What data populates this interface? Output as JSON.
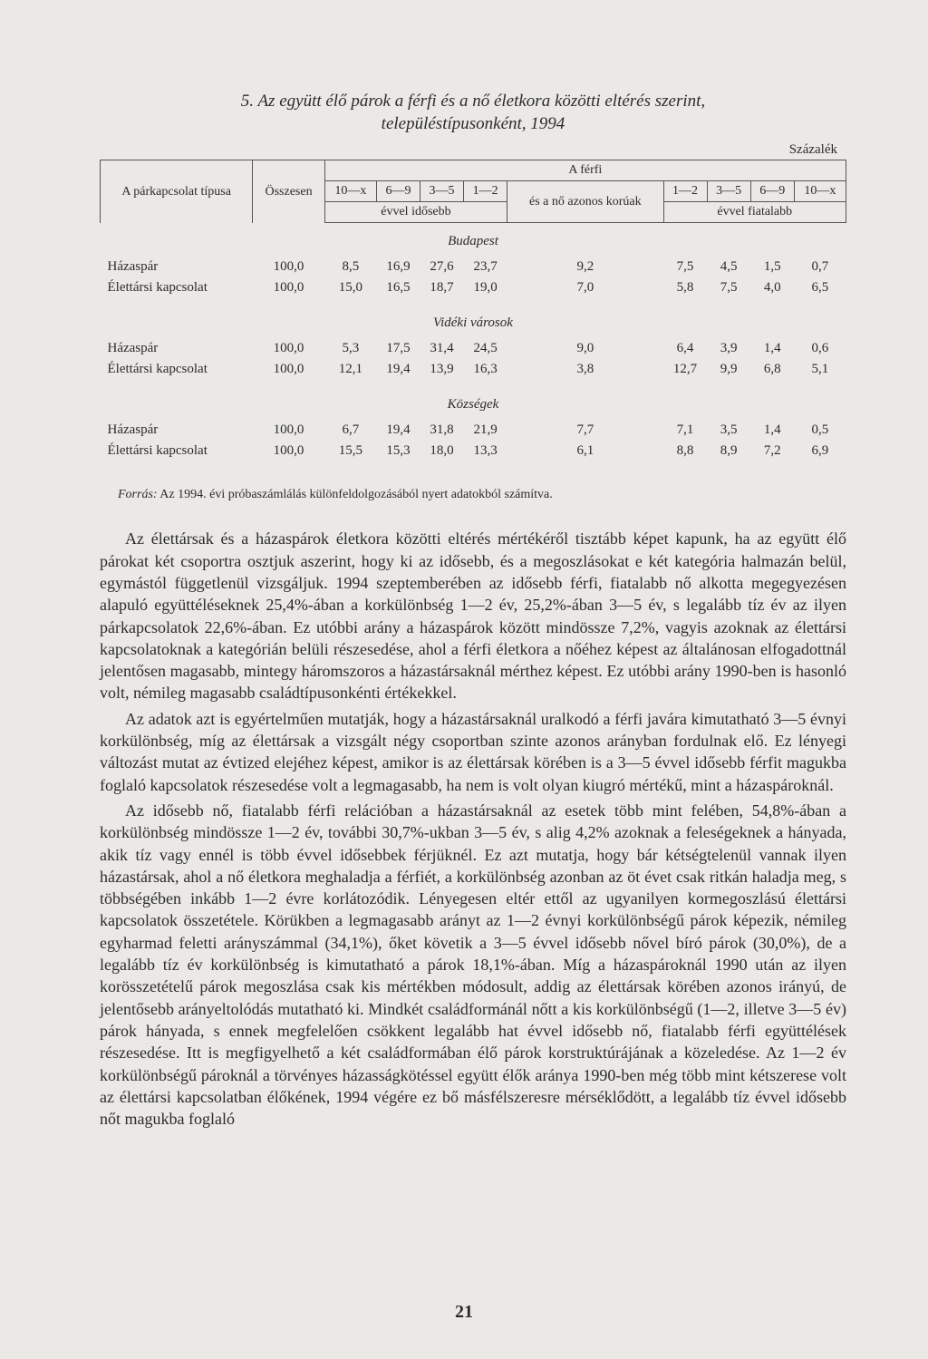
{
  "title_line1": "5. Az együtt élő párok a férfi és a nő életkora közötti eltérés szerint,",
  "title_line2": "településtípusonként, 1994",
  "unit": "Százalék",
  "header": {
    "col_type": "A párkapcsolat típusa",
    "col_total": "Összesen",
    "col_group": "A férfi",
    "col_10x_a": "10—x",
    "col_6_9_a": "6—9",
    "col_3_5_a": "3—5",
    "col_1_2_a": "1—2",
    "col_same": "és a nő azonos korúak",
    "col_1_2_b": "1—2",
    "col_3_5_b": "3—5",
    "col_6_9_b": "6—9",
    "col_10x_b": "10—x",
    "col_older": "évvel idősebb",
    "col_younger": "évvel fiatalabb"
  },
  "sections": {
    "budapest": "Budapest",
    "videki": "Vidéki városok",
    "kozsegek": "Községek"
  },
  "rows": {
    "hazaspar": "Házaspár",
    "elettarsi": "Élettársi kapcsolat"
  },
  "data": {
    "budapest": {
      "hazaspar": [
        "100,0",
        "8,5",
        "16,9",
        "27,6",
        "23,7",
        "9,2",
        "7,5",
        "4,5",
        "1,5",
        "0,7"
      ],
      "elettarsi": [
        "100,0",
        "15,0",
        "16,5",
        "18,7",
        "19,0",
        "7,0",
        "5,8",
        "7,5",
        "4,0",
        "6,5"
      ]
    },
    "videki": {
      "hazaspar": [
        "100,0",
        "5,3",
        "17,5",
        "31,4",
        "24,5",
        "9,0",
        "6,4",
        "3,9",
        "1,4",
        "0,6"
      ],
      "elettarsi": [
        "100,0",
        "12,1",
        "19,4",
        "13,9",
        "16,3",
        "3,8",
        "12,7",
        "9,9",
        "6,8",
        "5,1"
      ]
    },
    "kozsegek": {
      "hazaspar": [
        "100,0",
        "6,7",
        "19,4",
        "31,8",
        "21,9",
        "7,7",
        "7,1",
        "3,5",
        "1,4",
        "0,5"
      ],
      "elettarsi": [
        "100,0",
        "15,5",
        "15,3",
        "18,0",
        "13,3",
        "6,1",
        "8,8",
        "8,9",
        "7,2",
        "6,9"
      ]
    }
  },
  "source_label": "Forrás:",
  "source_text": " Az 1994. évi próbaszámlálás különfeldolgozásából nyert adatokból számítva.",
  "paragraphs": [
    "Az élettársak és a házaspárok életkora közötti eltérés mértékéről tisztább képet kapunk, ha az együtt élő párokat két csoportra osztjuk aszerint, hogy ki az idősebb, és a megoszlásokat e két kategória halmazán belül, egymástól függetlenül vizsgáljuk. 1994 szeptemberében az idősebb férfi, fiatalabb nő alkotta megegyezésen alapuló együttéléseknek 25,4%-ában a korkülönbség 1—2 év, 25,2%-ában 3—5 év, s legalább tíz év az ilyen párkapcsolatok 22,6%-ában. Ez utóbbi arány a házaspárok között mindössze 7,2%, vagyis azoknak az élettársi kapcsolatoknak a kategórián belüli részesedése, ahol a férfi életkora a nőéhez képest az általánosan elfogadottnál jelentősen magasabb, mintegy háromszoros a házastársaknál mérthez képest. Ez utóbbi arány 1990-ben is hasonló volt, némileg magasabb családtípusonkénti értékekkel.",
    "Az adatok azt is egyértelműen mutatják, hogy a házastársaknál uralkodó a férfi javára kimutatható 3—5 évnyi korkülönbség, míg az élettársak a vizsgált négy csoportban szinte azonos arányban fordulnak elő. Ez lényegi változást mutat az évtized elejéhez képest, amikor is az élettársak körében is a 3—5 évvel idősebb férfit magukba foglaló kapcsolatok részesedése volt a legmagasabb, ha nem is volt olyan kiugró mértékű, mint a házaspároknál.",
    "Az idősebb nő, fiatalabb férfi relációban a házastársaknál az esetek több mint felében, 54,8%-ában a korkülönbség mindössze 1—2 év, további 30,7%-ukban 3—5 év, s alig 4,2% azoknak a feleségeknek a hányada, akik tíz vagy ennél is több évvel idősebbek férjüknél. Ez azt mutatja, hogy bár kétségtelenül vannak ilyen házastársak, ahol a nő életkora meghaladja a férfiét, a korkülönbség azonban az öt évet csak ritkán haladja meg, s többségében inkább 1—2 évre korlátozódik. Lényegesen eltér ettől az ugyanilyen kormegoszlású élettársi kapcsolatok összetétele. Körükben a legmagasabb arányt az 1—2 évnyi korkülönbségű párok képezik, némileg egyharmad feletti arányszámmal (34,1%), őket követik a 3—5 évvel idősebb nővel bíró párok (30,0%), de a legalább tíz év korkülönbség is kimutatható a párok 18,1%-ában. Míg a házaspároknál 1990 után az ilyen korösszetételű párok megoszlása csak kis mértékben módosult, addig az élettársak körében azonos irányú, de jelentősebb arányeltolódás mutatható ki. Mindkét családformánál nőtt a kis korkülönbségű (1—2, illetve 3—5 év) párok hányada, s ennek megfelelően csökkent legalább hat évvel idősebb nő, fiatalabb férfi együttélések részesedése. Itt is megfigyelhető a két családformában élő párok korstruktúrájának a közeledése. Az 1—2 év korkülönbségű pároknál a törvényes házasságkötéssel együtt élők aránya 1990-ben még több mint kétszerese volt az élettársi kapcsolatban élőkének, 1994 végére ez bő másfélszeresre mérséklődött, a legalább tíz évvel idősebb nőt magukba foglaló"
  ],
  "page_number": "21"
}
